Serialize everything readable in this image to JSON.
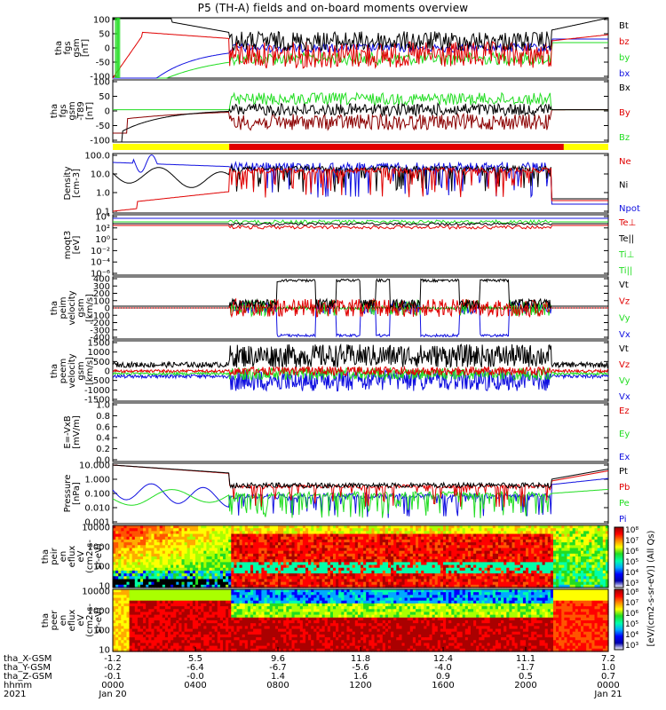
{
  "title": "P5 (TH-A) fields and on-board moments overview",
  "colors": {
    "black": "#000000",
    "red": "#e00000",
    "green": "#22dd22",
    "blue": "#1010e0",
    "dark_red": "#8b0000",
    "yellow": "#ffff00"
  },
  "chart_data": [
    {
      "type": "line",
      "id": "fgs_gsm",
      "ylabel": [
        "tha",
        "fgs",
        "gsm",
        "[nT]"
      ],
      "ylim": [
        -100,
        100
      ],
      "yticks": [
        "100",
        "50",
        "0",
        "-50",
        "-100"
      ],
      "series": [
        {
          "name": "Bt",
          "color": "#000000"
        },
        {
          "name": "bz",
          "color": "#e00000"
        },
        {
          "name": "by",
          "color": "#22dd22"
        },
        {
          "name": "bx",
          "color": "#1010e0"
        }
      ]
    },
    {
      "type": "line",
      "id": "fgs_gsm_t89",
      "ylabel": [
        "tha",
        "fgs",
        "gsm",
        "-T89",
        "[nT]"
      ],
      "ylim": [
        -120,
        120
      ],
      "yticks": [
        "100",
        "50",
        "0",
        "-50",
        "-100"
      ],
      "series": [
        {
          "name": "Bx",
          "color": "#000000"
        },
        {
          "name": "By",
          "color": "#e00000"
        },
        {
          "name": "Bz",
          "color": "#22dd22"
        }
      ]
    },
    {
      "type": "line",
      "id": "density",
      "scale": "log",
      "ylabel": [
        "Density",
        "[cm-3]"
      ],
      "ylim": [
        0.1,
        100
      ],
      "yticks": [
        "100.0",
        "10.0",
        "1.0",
        "0.1"
      ],
      "series": [
        {
          "name": "Ne",
          "color": "#e00000"
        },
        {
          "name": "Ni",
          "color": "#000000"
        },
        {
          "name": "Npot",
          "color": "#1010e0"
        }
      ]
    },
    {
      "type": "line",
      "id": "temperature",
      "scale": "log",
      "ylabel": [
        "moqt3",
        "[eV]"
      ],
      "yticks": [
        "10⁴",
        "10²",
        "10⁰",
        "10⁻²",
        "10⁻⁴",
        "10⁻⁶"
      ],
      "series": [
        {
          "name": "Te⊥",
          "color": "#e00000"
        },
        {
          "name": "Te||",
          "color": "#000000"
        },
        {
          "name": "Ti⊥",
          "color": "#22dd22"
        },
        {
          "name": "Ti||",
          "color": "#22dd22"
        }
      ]
    },
    {
      "type": "line",
      "id": "peim_velocity",
      "ylabel": [
        "tha",
        "peim",
        "velocity",
        "gsm",
        "[km/s]"
      ],
      "ylim": [
        -400,
        400
      ],
      "yticks": [
        "400",
        "300",
        "200",
        "100",
        "0",
        "-100",
        "-200",
        "-300",
        "-400"
      ],
      "series": [
        {
          "name": "Vt",
          "color": "#000000"
        },
        {
          "name": "Vz",
          "color": "#e00000"
        },
        {
          "name": "Vy",
          "color": "#22dd22"
        },
        {
          "name": "Vx",
          "color": "#1010e0"
        }
      ]
    },
    {
      "type": "line",
      "id": "peem_velocity",
      "ylabel": [
        "tha",
        "peem",
        "velocity",
        "gsm",
        "[km/s]"
      ],
      "ylim": [
        -1500,
        1500
      ],
      "yticks": [
        "1500",
        "1000",
        "500",
        "0",
        "-500",
        "-1000",
        "-1500"
      ],
      "series": [
        {
          "name": "Vt",
          "color": "#000000"
        },
        {
          "name": "Vz",
          "color": "#e00000"
        },
        {
          "name": "Vy",
          "color": "#22dd22"
        },
        {
          "name": "Vx",
          "color": "#1010e0"
        }
      ]
    },
    {
      "type": "line",
      "id": "efield",
      "ylabel": [
        "E=-VxB",
        "[mV/m]"
      ],
      "ylim": [
        0,
        1
      ],
      "yticks": [
        "1.0",
        "0.8",
        "0.6",
        "0.4",
        "0.2",
        "0.0"
      ],
      "series": [
        {
          "name": "Ez",
          "color": "#e00000"
        },
        {
          "name": "Ey",
          "color": "#22dd22"
        },
        {
          "name": "Ex",
          "color": "#1010e0"
        }
      ]
    },
    {
      "type": "line",
      "id": "pressure",
      "scale": "log",
      "ylabel": [
        "Pressure",
        "[nPa]"
      ],
      "ylim": [
        0.001,
        10
      ],
      "yticks": [
        "10.000",
        "1.000",
        "0.100",
        "0.010",
        "0.001"
      ],
      "series": [
        {
          "name": "Pt",
          "color": "#000000"
        },
        {
          "name": "Pb",
          "color": "#e00000"
        },
        {
          "name": "Pe",
          "color": "#22dd22"
        },
        {
          "name": "Pi",
          "color": "#1010e0"
        }
      ]
    },
    {
      "type": "heatmap",
      "id": "peir_eflux",
      "ylabel": [
        "tha",
        "peir",
        "en",
        "eflux",
        "eV",
        "(cm2-s-",
        "sr-eV)"
      ],
      "ylim": [
        5,
        25000
      ],
      "yticks": [
        "10000",
        "1000",
        "100",
        "10"
      ]
    },
    {
      "type": "heatmap",
      "id": "peer_eflux",
      "ylabel": [
        "tha",
        "peer",
        "en",
        "eflux",
        "eV",
        "(cm2-s-",
        "sr-eV)"
      ],
      "ylim": [
        5,
        25000
      ],
      "yticks": [
        "10000",
        "1000",
        "100",
        "10"
      ]
    }
  ],
  "colorbar": {
    "label": "[eV/(cm2-s-sr-eV)] (All Qs)",
    "ticks_upper": [
      "10⁸",
      "10⁷",
      "10⁶",
      "10⁵",
      "10⁴",
      "10³"
    ],
    "ticks_lower": [
      "10⁸",
      "10⁷",
      "10⁶",
      "10⁵",
      "10⁴",
      "10³"
    ]
  },
  "orbit_bar": {
    "colors": [
      "#ffff00",
      "#e00000",
      "#ffff00"
    ]
  },
  "xaxis": {
    "rows": [
      {
        "label": "tha_X-GSM",
        "values": [
          "-1.2",
          "5.5",
          "9.6",
          "11.8",
          "12.4",
          "11.1",
          "7.2"
        ]
      },
      {
        "label": "tha_Y-GSM",
        "values": [
          "-0.2",
          "-6.4",
          "-6.7",
          "-5.6",
          "-4.0",
          "-1.7",
          "1.0"
        ]
      },
      {
        "label": "tha_Z-GSM",
        "values": [
          "-0.1",
          "-0.0",
          "1.4",
          "1.6",
          "0.9",
          "0.5",
          "0.7"
        ]
      },
      {
        "label": "hhmm",
        "values": [
          "0000",
          "0400",
          "0800",
          "1200",
          "1600",
          "2000",
          "0000"
        ]
      },
      {
        "label": "2021",
        "values": [
          "Jan 20",
          "",
          "",
          "",
          "",
          "",
          "Jan 21"
        ]
      }
    ]
  }
}
